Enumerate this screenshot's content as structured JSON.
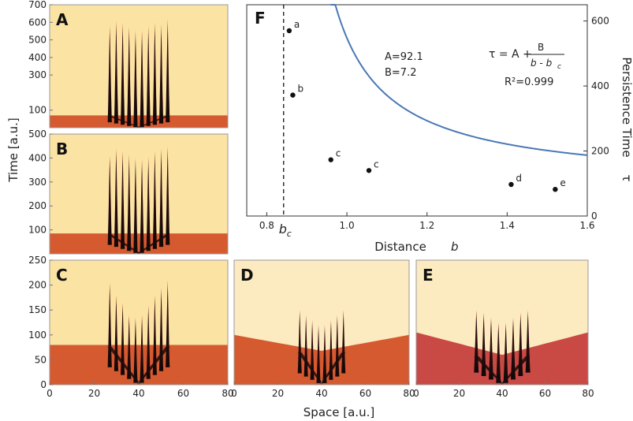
{
  "chart_data": [
    {
      "type": "heatmap",
      "panel_label": "A",
      "ylabel": "Time [a.u.]",
      "y_ticks": [
        100,
        300,
        400,
        500,
        600,
        700
      ],
      "ylim": [
        0,
        700
      ],
      "xlim": [
        0,
        80
      ],
      "front_time": 70,
      "num_spikes": 10,
      "spike_x_range": [
        27,
        53
      ],
      "spike_peaks": [
        580,
        610,
        600,
        575,
        555,
        555,
        580,
        600,
        590,
        620
      ],
      "colors": {
        "background": "#fbe3a4",
        "front": "#d65a30",
        "spike": "#150c0c"
      }
    },
    {
      "type": "heatmap",
      "panel_label": "B",
      "ylabel": "Time [a.u.]",
      "y_ticks": [
        100,
        200,
        300,
        400,
        500
      ],
      "ylim": [
        0,
        500
      ],
      "xlim": [
        0,
        80
      ],
      "front_time": 85,
      "num_spikes": 10,
      "spike_x_range": [
        27,
        53
      ],
      "spike_peaks": [
        410,
        440,
        430,
        415,
        400,
        395,
        405,
        430,
        440,
        450
      ],
      "colors": {
        "background": "#fbe3a4",
        "front": "#d65a30",
        "spike": "#150c0c"
      }
    },
    {
      "type": "heatmap",
      "panel_label": "C",
      "y_ticks": [
        0,
        50,
        100,
        150,
        200,
        250
      ],
      "ylim": [
        0,
        250
      ],
      "xlim": [
        0,
        80
      ],
      "x_ticks": [
        0,
        20,
        40,
        60,
        80
      ],
      "front_time": 80,
      "num_spikes": 10,
      "spike_x_range": [
        27,
        53
      ],
      "spike_peaks": [
        205,
        180,
        165,
        140,
        135,
        140,
        160,
        180,
        195,
        210
      ],
      "colors": {
        "background": "#fbe3a4",
        "front": "#d65a30",
        "spike": "#150c0c"
      }
    },
    {
      "type": "heatmap",
      "panel_label": "D",
      "ylim": [
        0,
        250
      ],
      "xlim": [
        0,
        80
      ],
      "x_ticks": [
        0,
        20,
        40,
        60,
        80
      ],
      "front_time_edge": 100,
      "front_time_center": 68,
      "num_spikes": 8,
      "spike_x_range": [
        30,
        50
      ],
      "spike_peaks": [
        150,
        140,
        130,
        120,
        120,
        130,
        140,
        150
      ],
      "colors": {
        "background": "#fcebc0",
        "front": "#d65a30",
        "spike": "#150c0c"
      }
    },
    {
      "type": "heatmap",
      "panel_label": "E",
      "ylim": [
        0,
        250
      ],
      "xlim": [
        0,
        80
      ],
      "x_ticks": [
        0,
        20,
        40,
        60,
        80
      ],
      "front_time_edge": 105,
      "front_time_center": 60,
      "num_spikes": 8,
      "spike_x_range": [
        28,
        52
      ],
      "spike_peaks": [
        150,
        145,
        135,
        125,
        125,
        135,
        145,
        150
      ],
      "colors": {
        "background": "#fcebc0",
        "front": "#c94a45",
        "spike": "#150c0c"
      }
    },
    {
      "type": "scatter",
      "panel_label": "F",
      "xlabel": "Distance",
      "xlabel_symbol": "b",
      "ylabel": "Persistence Time",
      "ylabel_symbol": "τ",
      "xlim": [
        0.75,
        1.6
      ],
      "ylim": [
        0,
        650
      ],
      "x_ticks": [
        0.8,
        1.0,
        1.2,
        1.4,
        1.6
      ],
      "x_tick_labels": [
        "0.8",
        "1.0",
        "1.2",
        "1.4",
        "1.6"
      ],
      "y_ticks": [
        0,
        200,
        400,
        600
      ],
      "bc_value": 0.842,
      "bc_label": "b",
      "bc_subscript": "c",
      "points": [
        {
          "label": "a",
          "x": 0.856,
          "y": 570
        },
        {
          "label": "b",
          "x": 0.865,
          "y": 372
        },
        {
          "label": "c",
          "x": 0.96,
          "y": 173
        },
        {
          "label": "c",
          "x": 1.055,
          "y": 140
        },
        {
          "label": "d",
          "x": 1.41,
          "y": 97
        },
        {
          "label": "e",
          "x": 1.52,
          "y": 82
        }
      ],
      "fit": {
        "A": 92.1,
        "B": 7.2,
        "bc": 0.842
      },
      "fit_text": {
        "A": "A=92.1",
        "B": "B=7.2",
        "R2": "R²=0.999"
      },
      "formula": {
        "lhs": "τ = A +",
        "numerator": "B",
        "denominator": "b - b",
        "den_subscript": "c"
      },
      "colors": {
        "curve": "#4a78b5",
        "points": "#111111",
        "dashed": "#111111"
      }
    }
  ],
  "shared_labels": {
    "x_axis_bottom": "Space [a.u.]",
    "y_axis_left": "Time [a.u.]"
  }
}
